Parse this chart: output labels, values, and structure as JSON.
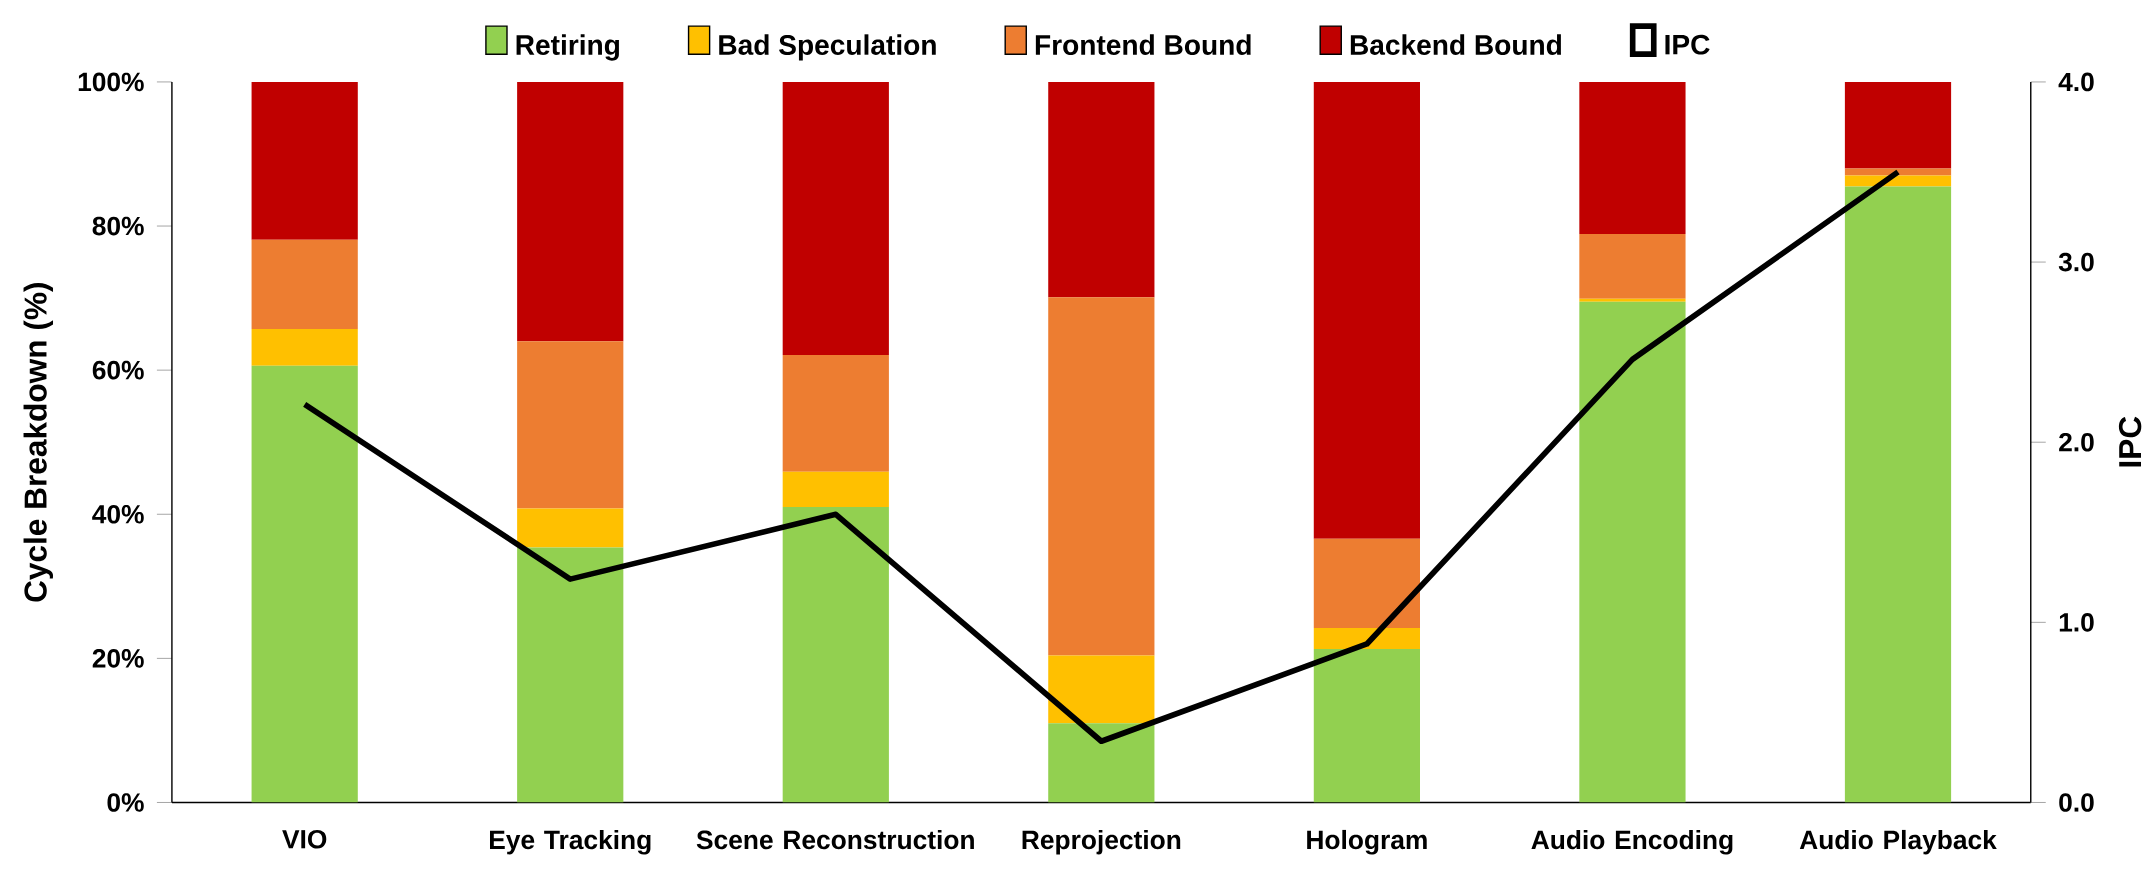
{
  "chart_data": {
    "type": "bar",
    "stacked": true,
    "legend": "top",
    "ylabel": "Cycle Breakdown (%)",
    "y2label": "IPC",
    "categories": [
      "VIO",
      "Eye Tracking",
      "Scene Reconstruction",
      "Reprojection",
      "Hologram",
      "Audio Encoding",
      "Audio Playback"
    ],
    "series": [
      {
        "name": "Retiring",
        "color": "#92d050",
        "values": [
          60.6,
          35.4,
          41.0,
          11.0,
          21.3,
          69.5,
          85.5
        ]
      },
      {
        "name": "Bad Speculation",
        "color": "#ffc000",
        "values": [
          5.1,
          5.4,
          4.9,
          9.4,
          2.9,
          0.4,
          1.5
        ]
      },
      {
        "name": "Frontend Bound",
        "color": "#ed7d31",
        "values": [
          12.4,
          23.2,
          16.2,
          49.7,
          12.4,
          9.0,
          1.0
        ]
      },
      {
        "name": "Backend Bound",
        "color": "#c00000",
        "values": [
          21.9,
          36.0,
          37.9,
          29.9,
          63.4,
          21.1,
          12.0
        ]
      },
      {
        "name": "IPC",
        "type": "line",
        "axis": "y2",
        "color": "#000000",
        "values": [
          2.21,
          1.24,
          1.6,
          0.34,
          0.88,
          2.46,
          3.5
        ]
      }
    ],
    "ylim": [
      0,
      100
    ],
    "yticks": [
      {
        "value": 0,
        "label": "0%"
      },
      {
        "value": 20,
        "label": "20%"
      },
      {
        "value": 40,
        "label": "40%"
      },
      {
        "value": 60,
        "label": "60%"
      },
      {
        "value": 80,
        "label": "80%"
      },
      {
        "value": 100,
        "label": "100%"
      }
    ],
    "y2lim": [
      0,
      4
    ],
    "y2ticks": [
      {
        "value": 0,
        "label": "0.0"
      },
      {
        "value": 1,
        "label": "1.0"
      },
      {
        "value": 2,
        "label": "2.0"
      },
      {
        "value": 3,
        "label": "3.0"
      },
      {
        "value": 4,
        "label": "4.0"
      }
    ]
  }
}
